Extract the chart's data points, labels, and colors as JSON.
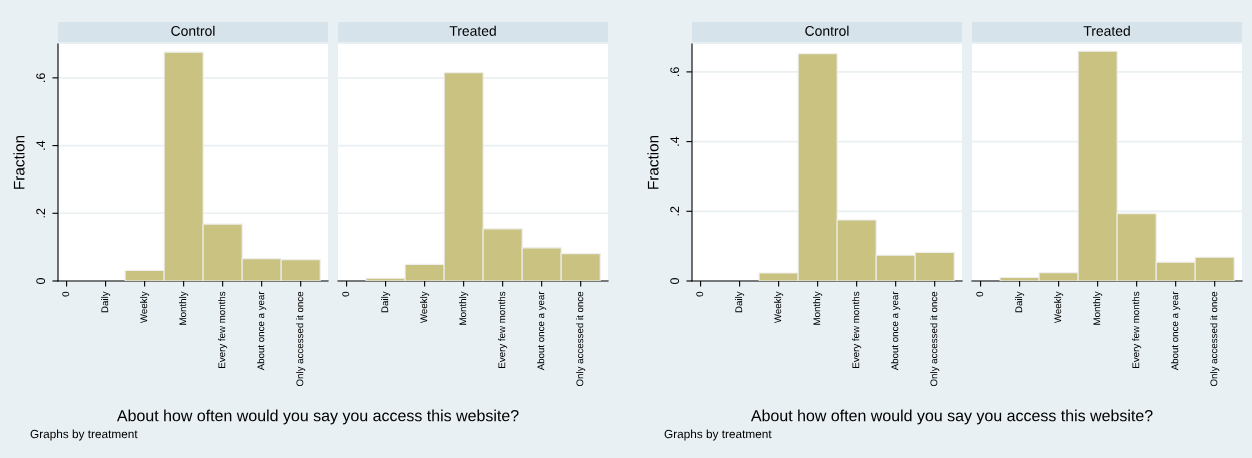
{
  "chart_data": [
    {
      "type": "bar",
      "title": "Control",
      "ylabel": "Fraction",
      "xlabel": "About how often would you say you access this website?",
      "annotations": [
        "Graphs by treatment"
      ],
      "categories": [
        "0",
        "Daily",
        "Weekly",
        "Monthly",
        "Every few months",
        "About once a year",
        "Only accessed it once"
      ],
      "values": [
        null,
        null,
        0.031,
        0.676,
        0.168,
        0.066,
        0.063
      ],
      "color": "#c9c280",
      "ylim": [
        0,
        0.7
      ],
      "yticks": [
        0,
        {
          "value": 0.2,
          "label": ".2"
        },
        {
          "value": 0.4,
          "label": ".4"
        },
        {
          "value": 0.6,
          "label": ".6"
        }
      ],
      "grid": "y"
    },
    {
      "type": "bar",
      "title": "Treated",
      "categories": [
        "0",
        "Daily",
        "Weekly",
        "Monthly",
        "Every few months",
        "About once a year",
        "Only accessed it once"
      ],
      "values": [
        null,
        0.008,
        0.049,
        0.615,
        0.154,
        0.098,
        0.081
      ],
      "color": "#c9c280",
      "ylim": [
        0,
        0.7
      ],
      "yticks": [
        0,
        0.2,
        0.4,
        0.6
      ],
      "grid": "y",
      "tick_labels": "x"
    },
    {
      "type": "bar",
      "title": "Control",
      "ylabel": "Fraction",
      "xlabel": "About how often would you say you access this website?",
      "annotations": [
        "Graphs by treatment"
      ],
      "categories": [
        "0",
        "Daily",
        "Weekly",
        "Monthly",
        "Every few months",
        "About once a year",
        "Only accessed it once"
      ],
      "values": [
        null,
        null,
        0.023,
        0.652,
        0.175,
        0.074,
        0.082
      ],
      "color": "#c9c280",
      "ylim": [
        0,
        0.68
      ],
      "yticks": [
        0,
        {
          "value": 0.2,
          "label": ".2"
        },
        {
          "value": 0.4,
          "label": ".4"
        },
        {
          "value": 0.6,
          "label": ".6"
        }
      ],
      "grid": "y"
    },
    {
      "type": "bar",
      "title": "Treated",
      "categories": [
        "0",
        "Daily",
        "Weekly",
        "Monthly",
        "Every few months",
        "About once a year",
        "Only accessed it once"
      ],
      "values": [
        null,
        0.01,
        0.024,
        0.659,
        0.193,
        0.054,
        0.068
      ],
      "color": "#c9c280",
      "ylim": [
        0,
        0.68
      ],
      "yticks": [
        0,
        0.2,
        0.4,
        0.6
      ],
      "grid": "y",
      "tick_labels": "x"
    }
  ]
}
